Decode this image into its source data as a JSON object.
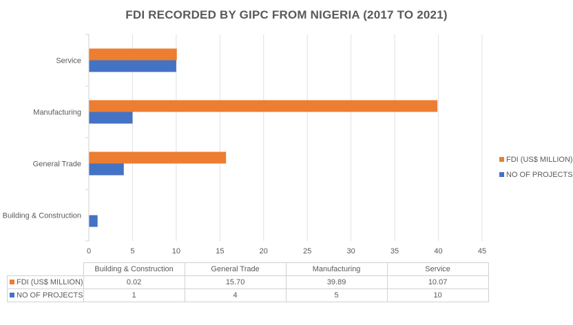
{
  "chart_data": {
    "type": "bar",
    "orientation": "horizontal",
    "title": "FDI RECORDED BY GIPC FROM NIGERIA (2017 TO 2021)",
    "categories": [
      "Building & Construction",
      "General Trade",
      "Manufacturing",
      "Service"
    ],
    "series": [
      {
        "name": "FDI (US$ MILLION)",
        "values": [
          0.02,
          15.7,
          39.89,
          10.07
        ],
        "labels": [
          "0.02",
          "15.70",
          "39.89",
          "10.07"
        ],
        "color": "#ED7D31"
      },
      {
        "name": "NO OF PROJECTS",
        "values": [
          1,
          4,
          5,
          10
        ],
        "labels": [
          "1",
          "4",
          "5",
          "10"
        ],
        "color": "#4472C4"
      }
    ],
    "xlim": [
      0,
      45
    ],
    "xticks": [
      0,
      5,
      10,
      15,
      20,
      25,
      30,
      35,
      40,
      45
    ],
    "grid": true,
    "legend": "right",
    "data_table": true
  }
}
